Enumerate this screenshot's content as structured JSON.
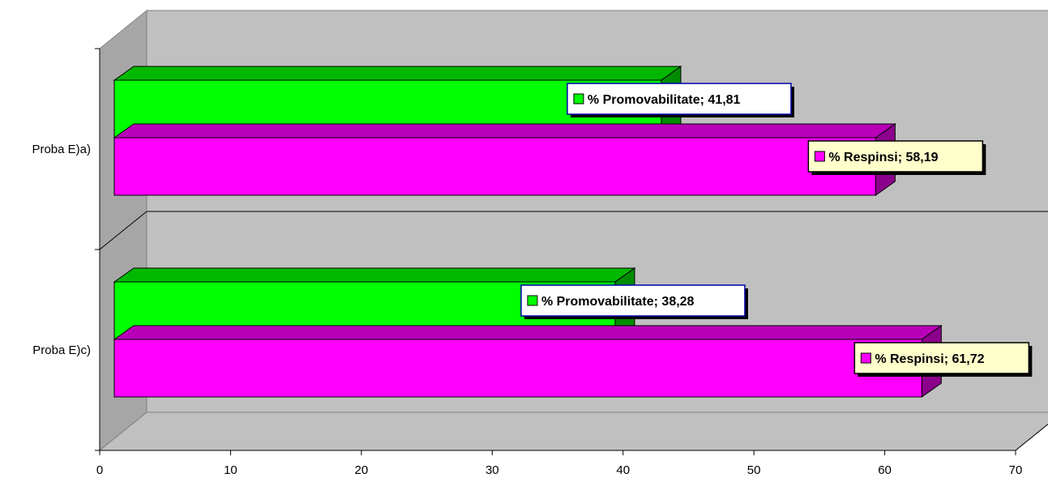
{
  "chart_data": {
    "type": "bar",
    "orientation": "horizontal",
    "three_d": true,
    "categories": [
      "Proba E)a)",
      "Proba E)c)"
    ],
    "series": [
      {
        "name": "% Promovabilitate",
        "values": [
          41.81,
          38.28
        ],
        "color": "#00ff00",
        "label_bg": "#ffffff",
        "label_border": "#0000aa"
      },
      {
        "name": "% Respinsi",
        "values": [
          58.19,
          61.72
        ],
        "color": "#ff00ff",
        "label_bg": "#ffffcc",
        "label_border": "#000000"
      }
    ],
    "data_labels": [
      [
        "% Promovabilitate; 41,81",
        "% Respinsi; 58,19"
      ],
      [
        "% Promovabilitate; 38,28",
        "% Respinsi; 61,72"
      ]
    ],
    "xlim": [
      0,
      70
    ],
    "xticks": [
      "0",
      "10",
      "20",
      "30",
      "40",
      "50",
      "60",
      "70"
    ],
    "grid": true,
    "legend": "none",
    "colors": {
      "wall": "#c0c0c0",
      "floor": "#c0c0c0",
      "side_wall": "#a6a6a6"
    }
  }
}
